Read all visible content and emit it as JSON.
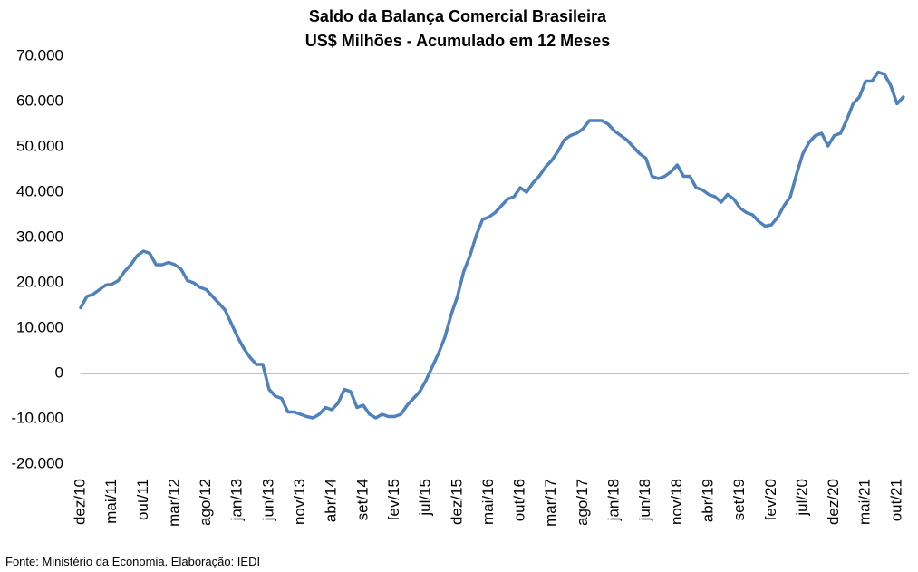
{
  "chart_data": {
    "type": "line",
    "title": "Saldo da Balança Comercial Brasileira",
    "subtitle": "US$ Milhões - Acumulado em 12 Meses",
    "source": "Fonte: Ministério da Economia. Elaboração: IEDI",
    "categories": [
      "dez/10",
      null,
      null,
      null,
      null,
      "mai/11",
      null,
      null,
      null,
      null,
      "out/11",
      null,
      null,
      null,
      null,
      "mar/12",
      null,
      null,
      null,
      null,
      "ago/12",
      null,
      null,
      null,
      null,
      "jan/13",
      null,
      null,
      null,
      null,
      "jun/13",
      null,
      null,
      null,
      null,
      "nov/13",
      null,
      null,
      null,
      null,
      "abr/14",
      null,
      null,
      null,
      null,
      "set/14",
      null,
      null,
      null,
      null,
      "fev/15",
      null,
      null,
      null,
      null,
      "jul/15",
      null,
      null,
      null,
      null,
      "dez/15",
      null,
      null,
      null,
      null,
      "mai/16",
      null,
      null,
      null,
      null,
      "out/16",
      null,
      null,
      null,
      null,
      "mar/17",
      null,
      null,
      null,
      null,
      "ago/17",
      null,
      null,
      null,
      null,
      "jan/18",
      null,
      null,
      null,
      null,
      "jun/18",
      null,
      null,
      null,
      null,
      "nov/18",
      null,
      null,
      null,
      null,
      "abr/19",
      null,
      null,
      null,
      null,
      "set/19",
      null,
      null,
      null,
      null,
      "fev/20",
      null,
      null,
      null,
      null,
      "jul/20",
      null,
      null,
      null,
      null,
      "dez/20",
      null,
      null,
      null,
      null,
      "mai/21",
      null,
      null,
      null,
      null,
      "out/21",
      null
    ],
    "series": [
      {
        "name": "Saldo",
        "color": "#4f81bd",
        "values": [
          14500,
          17000,
          17500,
          18500,
          19500,
          19700,
          20500,
          22500,
          24000,
          26000,
          27000,
          26500,
          24000,
          24000,
          24500,
          24000,
          23000,
          20500,
          20000,
          19000,
          18500,
          17000,
          15500,
          14000,
          11000,
          8000,
          5500,
          3500,
          2000,
          2000,
          -3500,
          -5000,
          -5500,
          -8500,
          -8500,
          -9000,
          -9500,
          -9800,
          -9000,
          -7500,
          -8000,
          -6500,
          -3500,
          -4000,
          -7500,
          -7000,
          -9000,
          -9800,
          -9000,
          -9500,
          -9500,
          -9000,
          -7000,
          -5500,
          -4000,
          -1500,
          1500,
          4500,
          8000,
          13000,
          17000,
          22500,
          26000,
          30500,
          34000,
          34500,
          35500,
          37000,
          38500,
          39000,
          41000,
          40000,
          42000,
          43500,
          45500,
          47000,
          49000,
          51500,
          52500,
          53000,
          54000,
          55800,
          55800,
          55800,
          55000,
          53500,
          52500,
          51500,
          50000,
          48500,
          47500,
          43500,
          43000,
          43500,
          44500,
          46000,
          43500,
          43500,
          41000,
          40500,
          39500,
          39000,
          37800,
          39500,
          38500,
          36500,
          35500,
          35000,
          33500,
          32500,
          32800,
          34500,
          37000,
          39000,
          44000,
          48500,
          51000,
          52500,
          53000,
          50200,
          52500,
          53000,
          56000,
          59500,
          61000,
          64500,
          64500,
          66500,
          66000,
          63500,
          59500,
          61000
        ]
      }
    ],
    "ylim": [
      -20000,
      70000
    ],
    "yticks": [
      {
        "value": -20000,
        "label": "-20.000"
      },
      {
        "value": -10000,
        "label": "-10.000"
      },
      0,
      {
        "value": 10000,
        "label": "10.000"
      },
      {
        "value": 20000,
        "label": "20.000"
      },
      {
        "value": 30000,
        "label": "30.000"
      },
      {
        "value": 40000,
        "label": "40.000"
      },
      {
        "value": 50000,
        "label": "50.000"
      },
      {
        "value": 60000,
        "label": "60.000"
      },
      {
        "value": 70000,
        "label": "70.000"
      }
    ],
    "grid": false
  }
}
